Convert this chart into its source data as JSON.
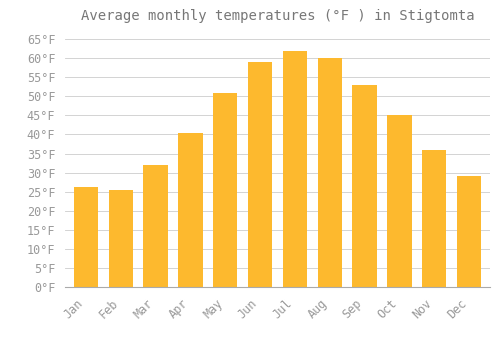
{
  "title": "Average monthly temperatures (°F ) in Stigtomta",
  "months": [
    "Jan",
    "Feb",
    "Mar",
    "Apr",
    "May",
    "Jun",
    "Jul",
    "Aug",
    "Sep",
    "Oct",
    "Nov",
    "Dec"
  ],
  "values": [
    26.2,
    25.5,
    32.0,
    40.3,
    51.0,
    59.0,
    62.0,
    60.0,
    53.0,
    45.0,
    35.8,
    29.0
  ],
  "bar_color": "#FDB92E",
  "bar_edge_color": "#FDB92E",
  "background_color": "#FFFFFF",
  "grid_color": "#CCCCCC",
  "text_color": "#999999",
  "title_color": "#777777",
  "ylim": [
    0,
    67
  ],
  "yticks": [
    0,
    5,
    10,
    15,
    20,
    25,
    30,
    35,
    40,
    45,
    50,
    55,
    60,
    65
  ],
  "title_fontsize": 10,
  "tick_fontsize": 8.5
}
